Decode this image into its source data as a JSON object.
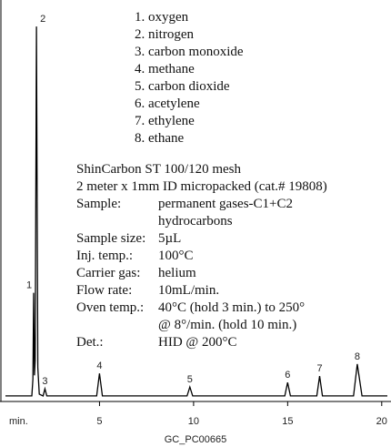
{
  "chart_data": {
    "type": "line",
    "components": [
      "1. oxygen",
      "2. nitrogen",
      "3. carbon monoxide",
      "4. methane",
      "5. carbon dioxide",
      "6. acetylene",
      "7. ethylene",
      "8. ethane"
    ],
    "column": [
      "ShinCarbon ST 100/120 mesh",
      "2 meter x 1mm ID micropacked (cat.# 19808)"
    ],
    "conditions": [
      {
        "label": "Sample:",
        "value": [
          "permanent gases-C1+C2",
          "hydrocarbons"
        ]
      },
      {
        "label": "Sample size:",
        "value": [
          "5µL"
        ]
      },
      {
        "label": "Inj. temp.:",
        "value": [
          "100°C"
        ]
      },
      {
        "label": "Carrier gas:",
        "value": [
          "helium"
        ]
      },
      {
        "label": "Flow rate:",
        "value": [
          "10mL/min."
        ]
      },
      {
        "label": "Oven temp.:",
        "value": [
          "40°C (hold 3 min.) to 250°",
          "@ 8°/min. (hold 10 min.)"
        ]
      },
      {
        "label": "Det.:",
        "value": [
          "HID @ 200°C"
        ]
      }
    ],
    "xlabel": "min.",
    "caption": "GC_PC00665",
    "x": [
      0,
      1.4,
      1.46,
      1.5,
      1.54,
      1.58,
      1.65,
      1.72,
      1.8,
      2.0,
      2.1,
      2.2,
      4.85,
      5.0,
      5.15,
      9.65,
      9.8,
      9.95,
      14.85,
      15.0,
      15.15,
      16.55,
      16.7,
      16.85,
      18.5,
      18.7,
      18.95,
      20.3
    ],
    "series": [
      {
        "color": "#000000",
        "values": [
          0.5,
          0.5,
          5,
          28,
          6,
          10,
          99,
          8,
          1,
          0.5,
          2.4,
          0.5,
          0.5,
          6.5,
          0.5,
          0.5,
          2.9,
          0.5,
          0.5,
          4.1,
          0.5,
          0.5,
          5.8,
          0.5,
          0.5,
          9,
          0.5,
          0.5
        ]
      }
    ],
    "peaks": [
      {
        "text": "1",
        "x": 1.5
      },
      {
        "text": "2",
        "x": 1.65
      },
      {
        "text": "3",
        "x": 2.1
      },
      {
        "text": "4",
        "x": 5.0
      },
      {
        "text": "5",
        "x": 9.8
      },
      {
        "text": "6",
        "x": 15.0
      },
      {
        "text": "7",
        "x": 16.7
      },
      {
        "text": "8",
        "x": 18.7
      }
    ],
    "xlim": [
      0,
      20.3
    ],
    "ylim": [
      0,
      100
    ],
    "xticks": [
      5,
      10,
      15,
      20
    ]
  }
}
